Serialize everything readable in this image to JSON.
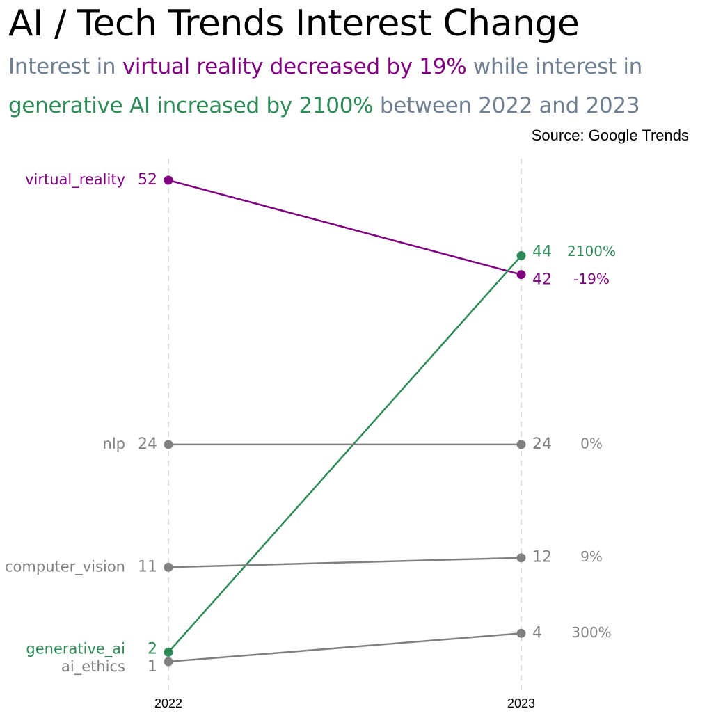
{
  "title": "AI / Tech Trends Interest Change",
  "subtitle": {
    "line1_prefix": "Interest in ",
    "line1_highlight": "virtual reality decreased by 19%",
    "line1_suffix": " while interest in",
    "line2_highlight": "generative AI increased by 2100%",
    "line2_suffix": " between 2022 and 2023"
  },
  "source": "Source: Google Trends",
  "colors": {
    "virtual_reality": "#800080",
    "generative_ai": "#2e8b57",
    "neutral": "#808080",
    "subtitle": "#708090",
    "gridline": "#dddddd"
  },
  "chart_data": {
    "type": "line",
    "subtype": "slope",
    "x": [
      "2022",
      "2023"
    ],
    "ylim": [
      1,
      52
    ],
    "grid": "vertical dashed at each year",
    "series": [
      {
        "name": "virtual_reality",
        "label": "virtual_reality",
        "values": [
          52,
          42
        ],
        "change": "-19%",
        "color_key": "virtual_reality"
      },
      {
        "name": "generative_ai",
        "label": "generative_ai",
        "values": [
          2,
          44
        ],
        "change": "2100%",
        "color_key": "generative_ai"
      },
      {
        "name": "nlp",
        "label": "nlp",
        "values": [
          24,
          24
        ],
        "change": "0%",
        "color_key": "neutral"
      },
      {
        "name": "computer_vision",
        "label": "computer_vision",
        "values": [
          11,
          12
        ],
        "change": "9%",
        "color_key": "neutral"
      },
      {
        "name": "ai_ethics",
        "label": "ai_ethics",
        "values": [
          1,
          4
        ],
        "change": "300%",
        "color_key": "neutral"
      }
    ]
  }
}
